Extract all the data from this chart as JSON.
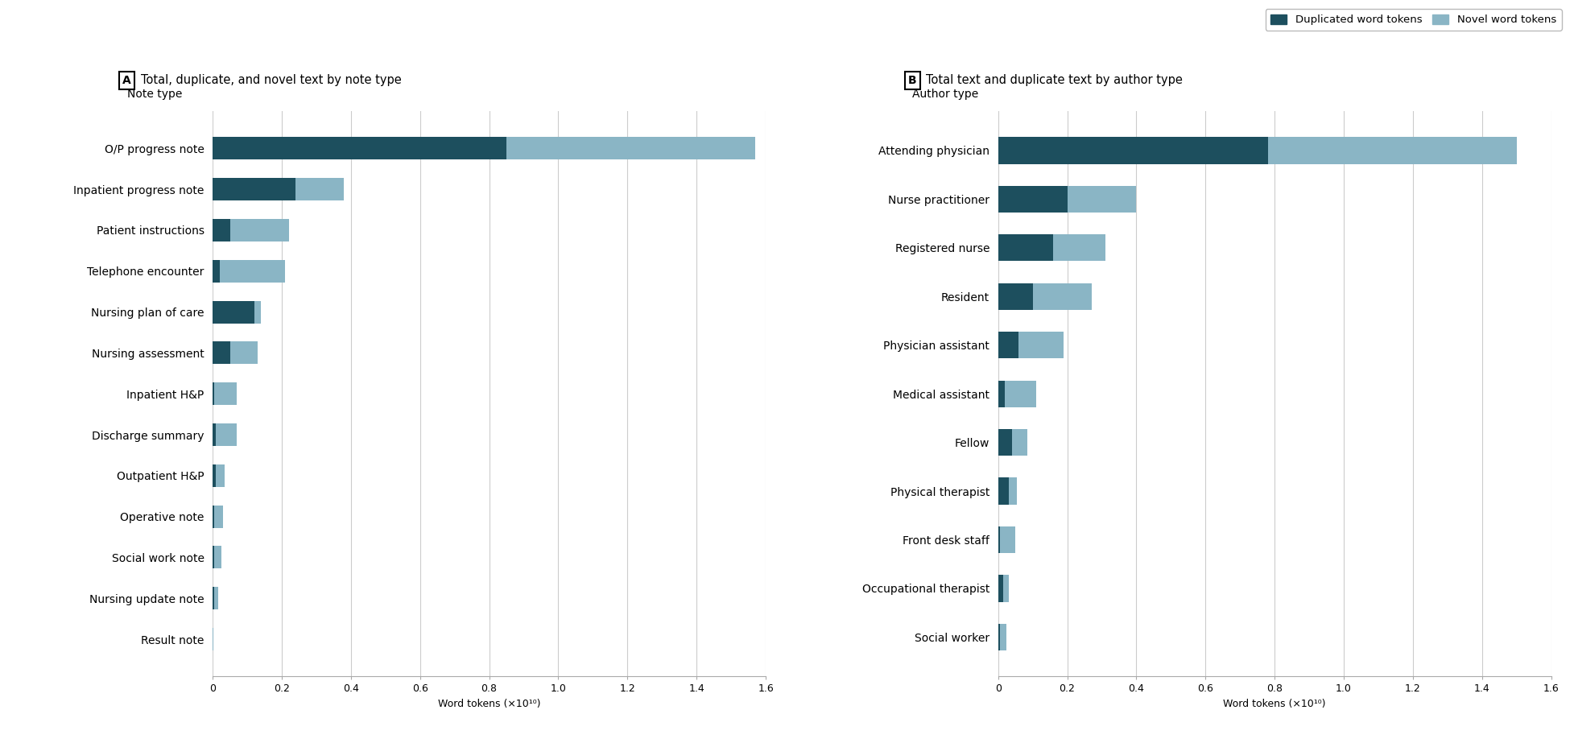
{
  "panel_A_title": "Total, duplicate, and novel text by note type",
  "panel_B_title": "Total text and duplicate text by author type",
  "xlabel": "Word tokens (×10¹⁰)",
  "panel_A_ylabel": "Note type",
  "panel_B_ylabel": "Author type",
  "legend_labels": [
    "Duplicated word tokens",
    "Novel word tokens"
  ],
  "color_duplicated": "#1d4f5e",
  "color_novel": "#8ab5c5",
  "xlim": 16000000000.0,
  "xtick_vals": [
    0,
    2000000000.0,
    4000000000.0,
    6000000000.0,
    8000000000.0,
    10000000000.0,
    12000000000.0,
    14000000000.0,
    16000000000.0
  ],
  "xticklabels": [
    "0",
    "0.2",
    "0.4",
    "0.6",
    "0.8",
    "1.0",
    "1.2",
    "1.4",
    "1.6"
  ],
  "panel_A_categories": [
    "O/P progress note",
    "Inpatient progress note",
    "Patient instructions",
    "Telephone encounter",
    "Nursing plan of care",
    "Nursing assessment",
    "Inpatient H&P",
    "Discharge summary",
    "Outpatient H&P",
    "Operative note",
    "Social work note",
    "Nursing update note",
    "Result note"
  ],
  "panel_A_duplicated": [
    8500000000.0,
    2400000000.0,
    500000000.0,
    200000000.0,
    1200000000.0,
    500000000.0,
    50000000.0,
    100000000.0,
    100000000.0,
    50000000.0,
    40000000.0,
    40000000.0,
    5000000.0
  ],
  "panel_A_novel": [
    7200000000.0,
    1400000000.0,
    1700000000.0,
    1900000000.0,
    200000000.0,
    800000000.0,
    650000000.0,
    600000000.0,
    250000000.0,
    250000000.0,
    210000000.0,
    110000000.0,
    10000000.0
  ],
  "panel_B_categories": [
    "Attending physician",
    "Nurse practitioner",
    "Registered nurse",
    "Resident",
    "Physician assistant",
    "Medical assistant",
    "Fellow",
    "Physical therapist",
    "Front desk staff",
    "Occupational therapist",
    "Social worker"
  ],
  "panel_B_duplicated": [
    7800000000.0,
    2000000000.0,
    1600000000.0,
    1000000000.0,
    600000000.0,
    200000000.0,
    400000000.0,
    300000000.0,
    50000000.0,
    150000000.0,
    50000000.0
  ],
  "panel_B_novel": [
    7200000000.0,
    2000000000.0,
    1500000000.0,
    1700000000.0,
    1300000000.0,
    900000000.0,
    450000000.0,
    250000000.0,
    450000000.0,
    150000000.0,
    200000000.0
  ],
  "background_color": "#ffffff",
  "grid_color": "#cccccc",
  "bar_height": 0.55,
  "fontsize_title": 10.5,
  "fontsize_ylabel": 10,
  "fontsize_ticks": 9,
  "fontsize_legend": 9.5,
  "fontsize_panel_label": 10,
  "fontsize_xlabel": 9
}
